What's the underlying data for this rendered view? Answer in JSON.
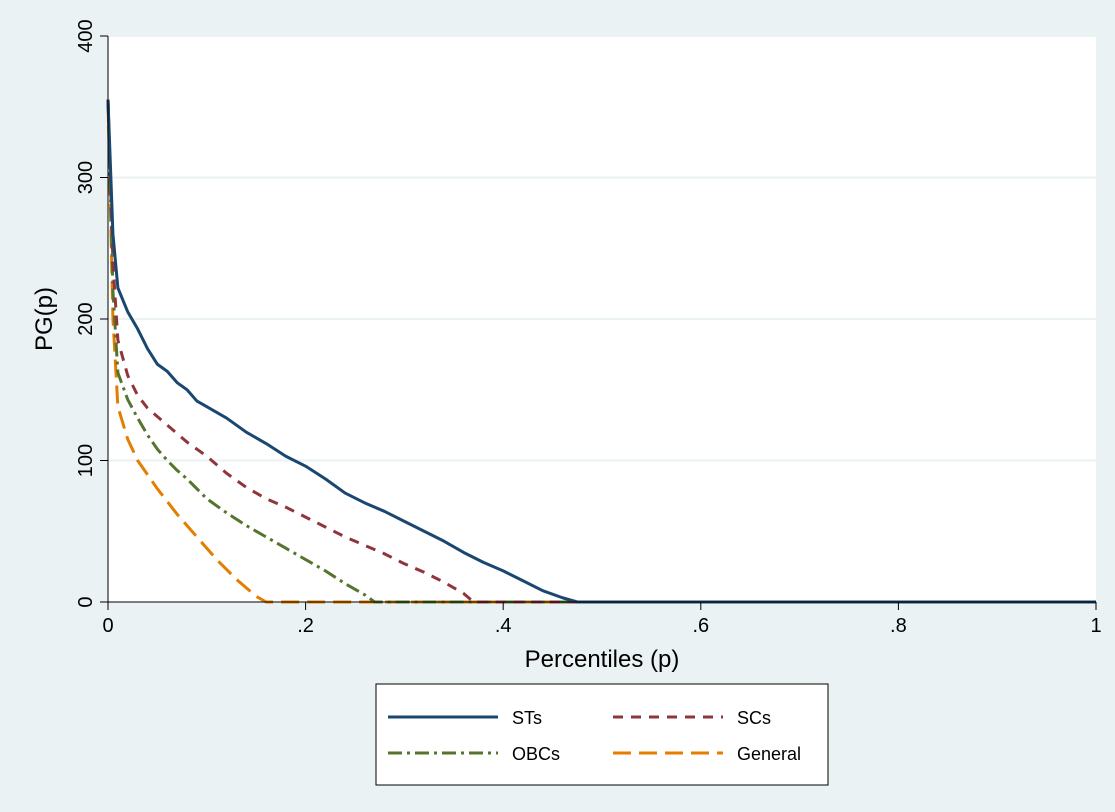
{
  "chart_data": {
    "type": "line",
    "title": "",
    "xlabel": "Percentiles (p)",
    "ylabel": "PG(p)",
    "xlim": [
      0,
      1
    ],
    "ylim": [
      0,
      400
    ],
    "x_ticks": [
      {
        "value": 0,
        "label": "0"
      },
      {
        "value": 0.2,
        "label": ".2"
      },
      {
        "value": 0.4,
        "label": ".4"
      },
      {
        "value": 0.6,
        "label": ".6"
      },
      {
        "value": 0.8,
        "label": ".8"
      },
      {
        "value": 1,
        "label": "1"
      }
    ],
    "y_ticks": [
      {
        "value": 0,
        "label": "0"
      },
      {
        "value": 100,
        "label": "100"
      },
      {
        "value": 200,
        "label": "200"
      },
      {
        "value": 300,
        "label": "300"
      },
      {
        "value": 400,
        "label": "400"
      }
    ],
    "grid": "horizontal",
    "legend_position": "bottom-center",
    "series": [
      {
        "name": "STs",
        "color": "#1a476f",
        "dash": "solid",
        "x": [
          0,
          0.005,
          0.01,
          0.02,
          0.03,
          0.04,
          0.05,
          0.06,
          0.07,
          0.08,
          0.09,
          0.1,
          0.12,
          0.14,
          0.16,
          0.18,
          0.2,
          0.22,
          0.24,
          0.26,
          0.28,
          0.3,
          0.32,
          0.34,
          0.36,
          0.38,
          0.4,
          0.42,
          0.44,
          0.46,
          0.475,
          0.5,
          0.6,
          0.7,
          0.8,
          0.9,
          1
        ],
        "y": [
          355,
          260,
          222,
          205,
          193,
          179,
          168,
          163,
          155,
          150,
          142,
          138,
          130,
          120,
          112,
          103,
          96,
          87,
          77,
          70,
          64,
          57,
          50,
          43,
          35,
          28,
          22,
          15,
          8,
          3,
          0,
          0,
          0,
          0,
          0,
          0,
          0
        ]
      },
      {
        "name": "SCs",
        "color": "#90353b",
        "dash": "10,8",
        "x": [
          0,
          0.005,
          0.01,
          0.02,
          0.03,
          0.04,
          0.05,
          0.06,
          0.07,
          0.08,
          0.09,
          0.1,
          0.12,
          0.14,
          0.16,
          0.18,
          0.2,
          0.22,
          0.24,
          0.26,
          0.28,
          0.3,
          0.32,
          0.34,
          0.36,
          0.37,
          0.4,
          0.6,
          0.8,
          1
        ],
        "y": [
          355,
          240,
          185,
          160,
          146,
          137,
          131,
          125,
          119,
          113,
          108,
          103,
          91,
          81,
          73,
          67,
          60,
          53,
          46,
          40,
          34,
          27,
          21,
          14,
          6,
          0,
          0,
          0,
          0,
          0
        ]
      },
      {
        "name": "OBCs",
        "color": "#55752f",
        "dash": "14,5,3,5",
        "x": [
          0,
          0.005,
          0.01,
          0.02,
          0.03,
          0.04,
          0.05,
          0.06,
          0.07,
          0.08,
          0.09,
          0.1,
          0.12,
          0.14,
          0.16,
          0.18,
          0.2,
          0.22,
          0.24,
          0.26,
          0.27,
          0.3,
          0.5,
          0.7,
          1
        ],
        "y": [
          355,
          220,
          162,
          143,
          130,
          118,
          108,
          100,
          93,
          87,
          80,
          73,
          63,
          54,
          46,
          38,
          30,
          22,
          13,
          5,
          0,
          0,
          0,
          0,
          0
        ]
      },
      {
        "name": "General",
        "color": "#e37e00",
        "dash": "18,8",
        "x": [
          0,
          0.005,
          0.01,
          0.02,
          0.03,
          0.04,
          0.05,
          0.06,
          0.07,
          0.08,
          0.09,
          0.1,
          0.11,
          0.12,
          0.13,
          0.14,
          0.15,
          0.16,
          0.17,
          0.2,
          0.4,
          0.6,
          0.8,
          1
        ],
        "y": [
          355,
          200,
          138,
          115,
          100,
          90,
          80,
          71,
          62,
          54,
          46,
          38,
          30,
          23,
          16,
          10,
          4,
          0,
          0,
          0,
          0,
          0,
          0,
          0
        ]
      }
    ]
  }
}
